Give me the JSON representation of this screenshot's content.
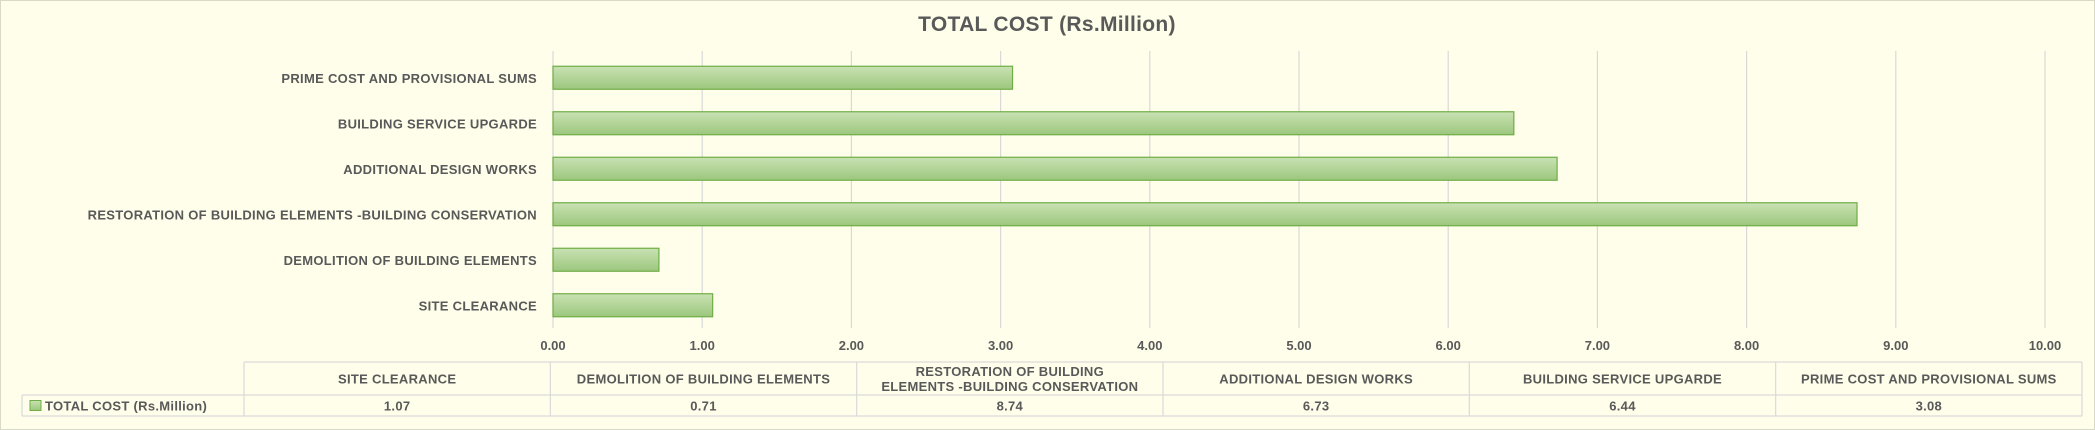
{
  "chart_data": {
    "type": "bar",
    "orientation": "horizontal",
    "title": "TOTAL COST (Rs.Million)",
    "categories": [
      "SITE CLEARANCE",
      "DEMOLITION OF BUILDING ELEMENTS",
      "RESTORATION OF BUILDING ELEMENTS -BUILDING CONSERVATION",
      "ADDITIONAL DESIGN WORKS",
      "BUILDING SERVICE UPGARDE",
      "PRIME COST AND PROVISIONAL SUMS"
    ],
    "series": [
      {
        "name": "TOTAL COST (Rs.Million)",
        "values": [
          1.07,
          0.71,
          8.74,
          6.73,
          6.44,
          3.08
        ],
        "value_labels": [
          "1.07",
          "0.71",
          "8.74",
          "6.73",
          "6.44",
          "3.08"
        ],
        "color": "#a9d18e"
      }
    ],
    "xlim": [
      0,
      10
    ],
    "xticks": [
      "0.00",
      "1.00",
      "2.00",
      "3.00",
      "4.00",
      "5.00",
      "6.00",
      "7.00",
      "8.00",
      "9.00",
      "10.00"
    ],
    "table_header_lines": [
      [
        "SITE CLEARANCE"
      ],
      [
        "DEMOLITION OF BUILDING ELEMENTS"
      ],
      [
        "RESTORATION OF BUILDING",
        "ELEMENTS -BUILDING CONSERVATION"
      ],
      [
        "ADDITIONAL DESIGN WORKS"
      ],
      [
        "BUILDING SERVICE UPGARDE"
      ],
      [
        "PRIME COST AND PROVISIONAL SUMS"
      ]
    ],
    "grid": true,
    "legend": "data-table"
  },
  "colors": {
    "background": "#fffeea",
    "bar_fill": "#a9d18e",
    "bar_stroke": "#70ad47",
    "grid": "#d9d9d9",
    "text": "#595959"
  }
}
